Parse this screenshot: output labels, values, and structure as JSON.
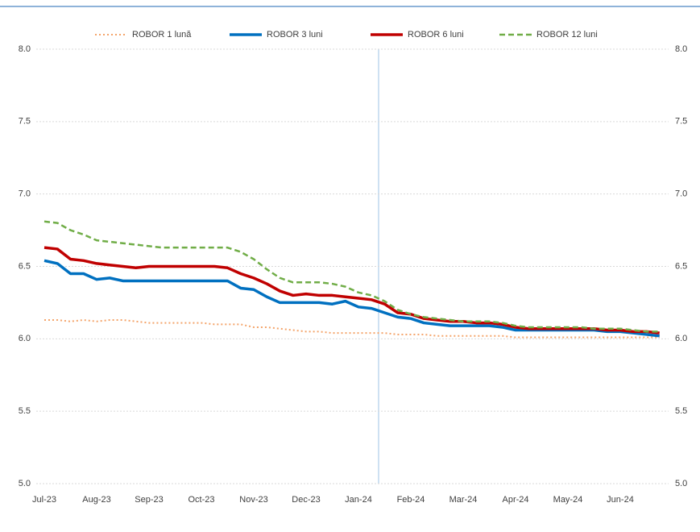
{
  "chart_data": {
    "type": "line",
    "categories": [
      "Jul-23",
      null,
      null,
      null,
      "Aug-23",
      null,
      null,
      null,
      "Sep-23",
      null,
      null,
      null,
      "Oct-23",
      null,
      null,
      null,
      "Nov-23",
      null,
      null,
      null,
      "Dec-23",
      null,
      null,
      null,
      "Jan-24",
      null,
      null,
      null,
      "Feb-24",
      null,
      null,
      null,
      "Mar-24",
      null,
      null,
      null,
      "Apr-24",
      null,
      null,
      null,
      "May-24",
      null,
      null,
      null,
      "Jun-24",
      null,
      null,
      null
    ],
    "series": [
      {
        "name": "ROBOR 1 lună",
        "color": "#f4a46a",
        "style": "dotted",
        "values": [
          6.13,
          6.13,
          6.12,
          6.13,
          6.12,
          6.13,
          6.13,
          6.12,
          6.11,
          6.11,
          6.11,
          6.11,
          6.11,
          6.1,
          6.1,
          6.1,
          6.08,
          6.08,
          6.07,
          6.06,
          6.05,
          6.05,
          6.04,
          6.04,
          6.04,
          6.04,
          6.04,
          6.03,
          6.03,
          6.03,
          6.02,
          6.02,
          6.02,
          6.02,
          6.02,
          6.02,
          6.01,
          6.01,
          6.01,
          6.01,
          6.01,
          6.01,
          6.01,
          6.01,
          6.01,
          6.01,
          6.01,
          6.01
        ]
      },
      {
        "name": "ROBOR 3 luni",
        "color": "#0070c0",
        "style": "solid",
        "values": [
          6.54,
          6.52,
          6.45,
          6.45,
          6.41,
          6.42,
          6.4,
          6.4,
          6.4,
          6.4,
          6.4,
          6.4,
          6.4,
          6.4,
          6.4,
          6.35,
          6.34,
          6.29,
          6.25,
          6.25,
          6.25,
          6.25,
          6.24,
          6.26,
          6.22,
          6.21,
          6.18,
          6.15,
          6.14,
          6.11,
          6.1,
          6.09,
          6.09,
          6.09,
          6.09,
          6.08,
          6.06,
          6.06,
          6.06,
          6.06,
          6.06,
          6.06,
          6.06,
          6.05,
          6.05,
          6.04,
          6.03,
          6.02
        ]
      },
      {
        "name": "ROBOR 6 luni",
        "color": "#c00000",
        "style": "solid",
        "values": [
          6.63,
          6.62,
          6.55,
          6.54,
          6.52,
          6.51,
          6.5,
          6.49,
          6.5,
          6.5,
          6.5,
          6.5,
          6.5,
          6.5,
          6.49,
          6.45,
          6.42,
          6.38,
          6.33,
          6.3,
          6.31,
          6.3,
          6.3,
          6.29,
          6.28,
          6.27,
          6.24,
          6.18,
          6.17,
          6.14,
          6.13,
          6.12,
          6.12,
          6.11,
          6.11,
          6.1,
          6.08,
          6.07,
          6.07,
          6.07,
          6.07,
          6.07,
          6.07,
          6.06,
          6.06,
          6.05,
          6.05,
          6.04
        ]
      },
      {
        "name": "ROBOR 12 luni",
        "color": "#70ad47",
        "style": "dashed",
        "values": [
          6.81,
          6.8,
          6.75,
          6.72,
          6.68,
          6.67,
          6.66,
          6.65,
          6.64,
          6.63,
          6.63,
          6.63,
          6.63,
          6.63,
          6.63,
          6.6,
          6.55,
          6.48,
          6.42,
          6.39,
          6.39,
          6.39,
          6.38,
          6.36,
          6.32,
          6.3,
          6.26,
          6.2,
          6.17,
          6.15,
          6.14,
          6.13,
          6.12,
          6.12,
          6.12,
          6.11,
          6.09,
          6.08,
          6.08,
          6.08,
          6.08,
          6.08,
          6.07,
          6.07,
          6.07,
          6.06,
          6.05,
          6.05
        ]
      }
    ],
    "ylim": [
      5,
      8
    ],
    "yticks": [
      {
        "value": 5,
        "label": "5.0"
      },
      {
        "value": 5.5,
        "label": "5.5"
      },
      {
        "value": 6,
        "label": "6.0"
      },
      {
        "value": 6.5,
        "label": "6.5"
      },
      {
        "value": 7,
        "label": "7.0"
      },
      {
        "value": 7.5,
        "label": "7.5"
      },
      {
        "value": 8,
        "label": "8.0"
      }
    ],
    "y2lim": [
      5,
      8
    ],
    "y2ticks": [
      {
        "value": 5,
        "label": "5.0"
      },
      {
        "value": 5.5,
        "label": "5.5"
      },
      {
        "value": 6,
        "label": "6.0"
      },
      {
        "value": 6.5,
        "label": "6.5"
      },
      {
        "value": 7,
        "label": "7.0"
      },
      {
        "value": 7.5,
        "label": "7.5"
      },
      {
        "value": 8,
        "label": "8.0"
      }
    ],
    "grid": true,
    "legend": "top"
  }
}
